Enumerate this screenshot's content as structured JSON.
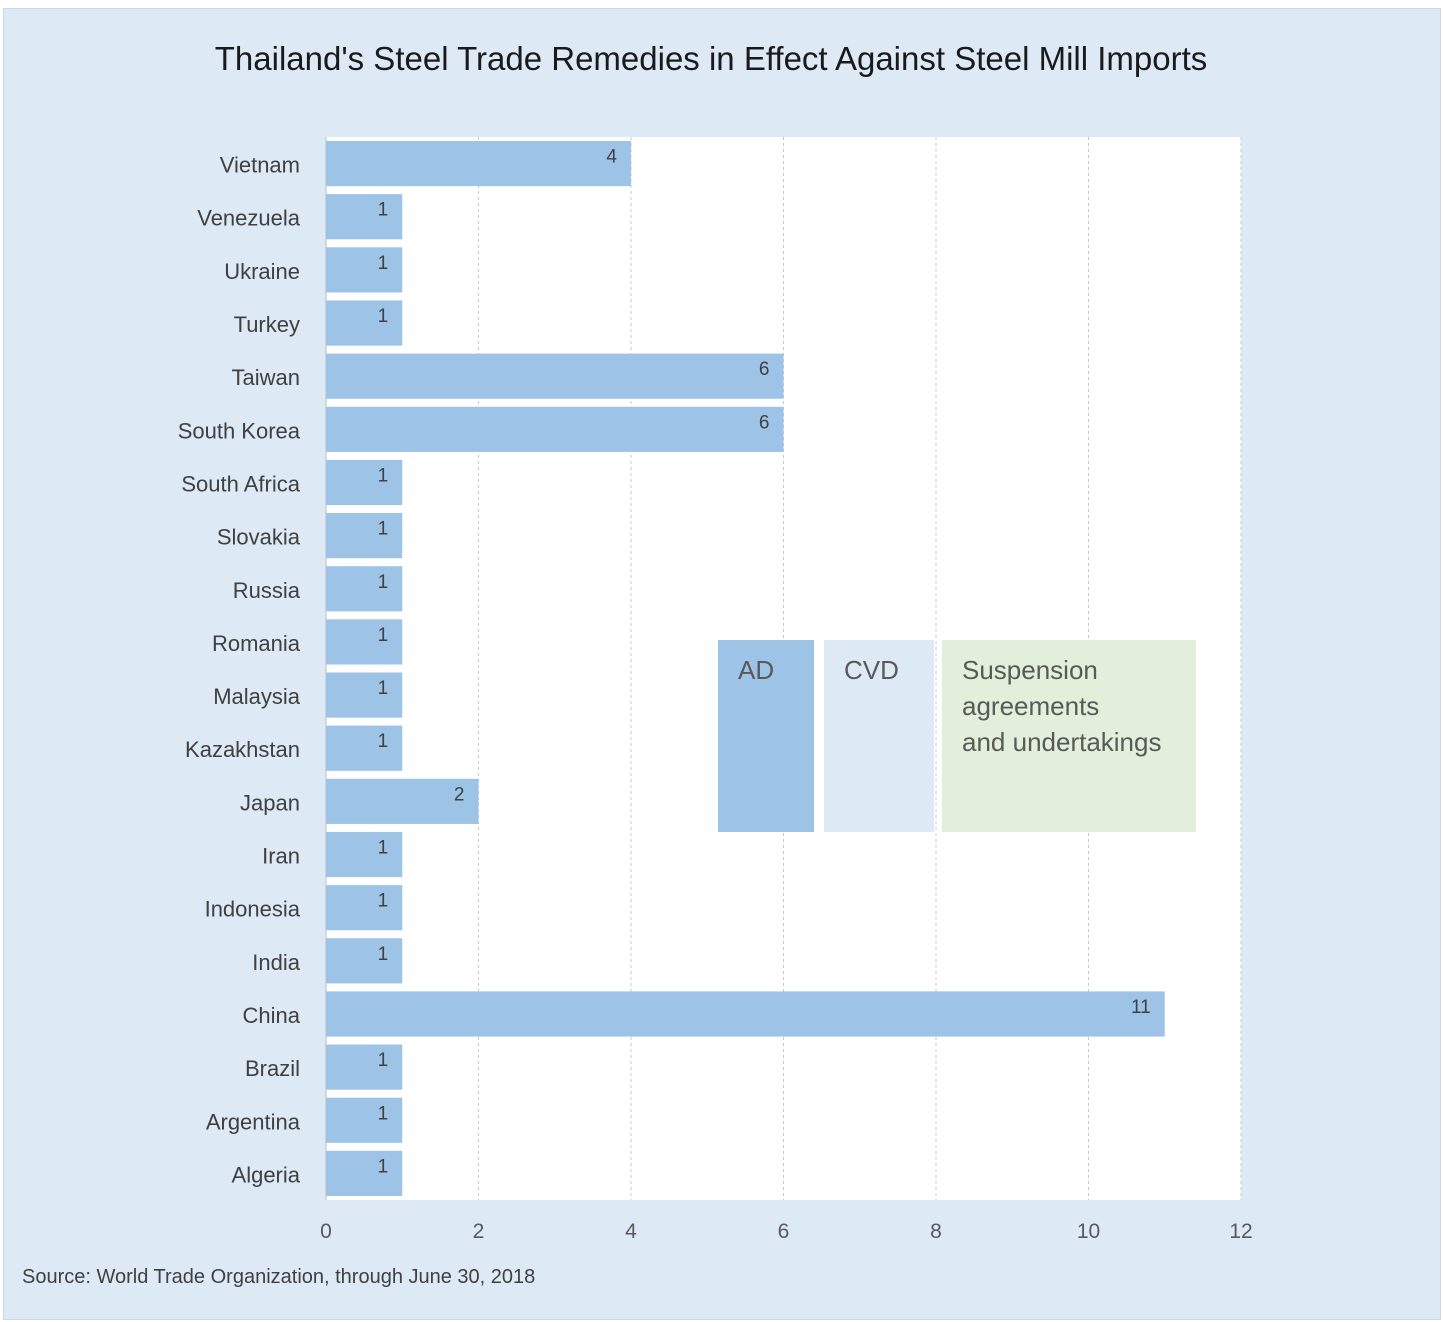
{
  "chart_data": {
    "type": "bar",
    "orientation": "horizontal",
    "title": "Thailand's Steel Trade Remedies in Effect Against Steel Mill Imports",
    "categories": [
      "Vietnam",
      "Venezuela",
      "Ukraine",
      "Turkey",
      "Taiwan",
      "South Korea",
      "South Africa",
      "Slovakia",
      "Russia",
      "Romania",
      "Malaysia",
      "Kazakhstan",
      "Japan",
      "Iran",
      "Indonesia",
      "India",
      "China",
      "Brazil",
      "Argentina",
      "Algeria"
    ],
    "values": [
      4,
      1,
      1,
      1,
      6,
      6,
      1,
      1,
      1,
      1,
      1,
      1,
      2,
      1,
      1,
      1,
      11,
      1,
      1,
      1
    ],
    "xlim": [
      0,
      12
    ],
    "xticks": [
      0,
      2,
      4,
      6,
      8,
      10,
      12
    ],
    "grid": "vertical dashed",
    "legend": {
      "placement": "center-right",
      "entries": [
        {
          "label": "AD",
          "color": "#9dc3e6"
        },
        {
          "label": "CVD",
          "color": "#dde9f5"
        },
        {
          "label": "Suspension agreements and undertakings",
          "lines": [
            "Suspension",
            "agreements",
            "and undertakings"
          ],
          "color": "#e2efda"
        }
      ]
    },
    "bar_color": "#9dc3e6",
    "source": "Source: World Trade Organization, through June 30, 2018"
  }
}
